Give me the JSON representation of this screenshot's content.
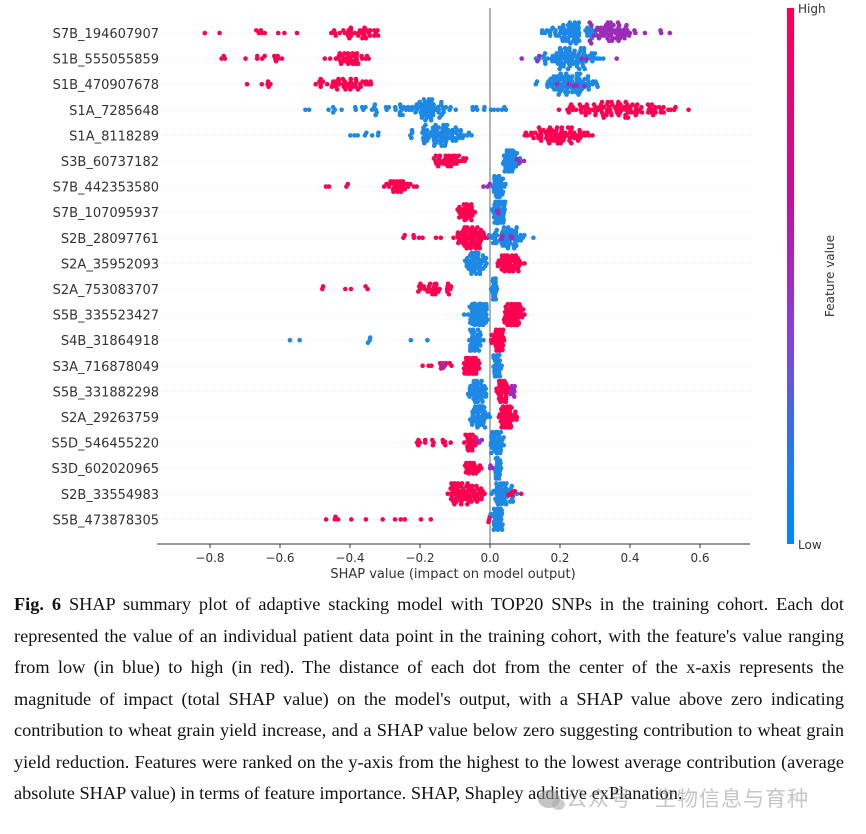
{
  "chart_data": {
    "type": "scatter",
    "subtype": "shap-beeswarm",
    "xlabel": "SHAP value (impact on model output)",
    "xlim": [
      -0.94,
      0.74
    ],
    "xticks": [
      -0.8,
      -0.6,
      -0.4,
      -0.2,
      0.0,
      0.2,
      0.4,
      0.6
    ],
    "xtick_labels": [
      "−0.8",
      "−0.6",
      "−0.4",
      "−0.2",
      "0.0",
      "0.2",
      "0.4",
      "0.6"
    ],
    "grid": false,
    "colorbar": {
      "label": "Feature value",
      "high_label": "High",
      "low_label": "Low",
      "high_color": "#ff0051",
      "mid_color": "#8a2be2",
      "low_color": "#008bfb"
    },
    "colors": {
      "high": "#ff0051",
      "mid": "#9b2db8",
      "low": "#1e88e5"
    },
    "features": [
      {
        "name": "S7B_194607907",
        "clusters": [
          {
            "color": "high",
            "from": -0.87,
            "to": -0.55,
            "n": 10,
            "peak": -0.7,
            "spread": 1
          },
          {
            "color": "high",
            "from": -0.52,
            "to": -0.25,
            "n": 40,
            "peak": -0.38,
            "spread": 2
          },
          {
            "color": "low",
            "from": 0.07,
            "to": 0.32,
            "n": 70,
            "peak": 0.27,
            "spread": 4
          },
          {
            "color": "mid",
            "from": 0.22,
            "to": 0.46,
            "n": 60,
            "peak": 0.38,
            "spread": 4
          },
          {
            "color": "mid",
            "from": 0.48,
            "to": 0.52,
            "n": 3,
            "peak": 0.5,
            "spread": 1
          }
        ]
      },
      {
        "name": "S1B_555055859",
        "clusters": [
          {
            "color": "high",
            "from": -0.79,
            "to": -0.57,
            "n": 14,
            "peak": -0.65,
            "spread": 1
          },
          {
            "color": "high",
            "from": -0.5,
            "to": -0.3,
            "n": 40,
            "peak": -0.42,
            "spread": 2
          },
          {
            "color": "low",
            "from": 0.08,
            "to": 0.35,
            "n": 90,
            "peak": 0.26,
            "spread": 5
          },
          {
            "color": "mid",
            "from": 0.08,
            "to": 0.37,
            "n": 6,
            "peak": 0.3,
            "spread": 1
          }
        ]
      },
      {
        "name": "S1B_470907678",
        "clusters": [
          {
            "color": "high",
            "from": -0.7,
            "to": -0.6,
            "n": 6,
            "peak": -0.65,
            "spread": 1
          },
          {
            "color": "high",
            "from": -0.57,
            "to": -0.25,
            "n": 45,
            "peak": -0.42,
            "spread": 2
          },
          {
            "color": "low",
            "from": 0.08,
            "to": 0.37,
            "n": 90,
            "peak": 0.24,
            "spread": 5
          },
          {
            "color": "mid",
            "from": 0.12,
            "to": 0.3,
            "n": 5,
            "peak": 0.2,
            "spread": 1
          }
        ]
      },
      {
        "name": "S1A_7285648",
        "clusters": [
          {
            "color": "low",
            "from": -0.76,
            "to": -0.1,
            "n": 30,
            "peak": -0.22,
            "spread": 2
          },
          {
            "color": "low",
            "from": -0.28,
            "to": 0.0,
            "n": 60,
            "peak": -0.23,
            "spread": 4
          },
          {
            "color": "low",
            "from": -0.05,
            "to": 0.05,
            "n": 12,
            "peak": 0.0,
            "spread": 1
          },
          {
            "color": "high",
            "from": 0.02,
            "to": 0.66,
            "n": 100,
            "peak": 0.4,
            "spread": 3
          }
        ]
      },
      {
        "name": "S1A_8118289",
        "clusters": [
          {
            "color": "low",
            "from": -0.47,
            "to": -0.3,
            "n": 8,
            "peak": -0.33,
            "spread": 1
          },
          {
            "color": "low",
            "from": -0.3,
            "to": 0.0,
            "n": 80,
            "peak": -0.13,
            "spread": 4
          },
          {
            "color": "high",
            "from": 0.0,
            "to": 0.35,
            "n": 80,
            "peak": 0.2,
            "spread": 3
          }
        ]
      },
      {
        "name": "S3B_60737182",
        "clusters": [
          {
            "color": "high",
            "from": -0.23,
            "to": -0.05,
            "n": 45,
            "peak": -0.1,
            "spread": 2
          },
          {
            "color": "low",
            "from": 0.01,
            "to": 0.1,
            "n": 60,
            "peak": 0.06,
            "spread": 5
          },
          {
            "color": "mid",
            "from": 0.05,
            "to": 0.11,
            "n": 4,
            "peak": 0.08,
            "spread": 1
          }
        ]
      },
      {
        "name": "S7B_442353580",
        "clusters": [
          {
            "color": "high",
            "from": -0.47,
            "to": -0.37,
            "n": 4,
            "peak": -0.42,
            "spread": 1
          },
          {
            "color": "high",
            "from": -0.35,
            "to": -0.18,
            "n": 35,
            "peak": -0.24,
            "spread": 2
          },
          {
            "color": "mid",
            "from": -0.02,
            "to": 0.0,
            "n": 3,
            "peak": -0.01,
            "spread": 1
          },
          {
            "color": "low",
            "from": 0.0,
            "to": 0.07,
            "n": 50,
            "peak": 0.01,
            "spread": 4
          }
        ]
      },
      {
        "name": "S7B_107095937",
        "clusters": [
          {
            "color": "high",
            "from": -0.11,
            "to": -0.02,
            "n": 40,
            "peak": -0.07,
            "spread": 3
          },
          {
            "color": "low",
            "from": 0.0,
            "to": 0.06,
            "n": 55,
            "peak": 0.02,
            "spread": 5
          },
          {
            "color": "mid",
            "from": 0.02,
            "to": 0.04,
            "n": 3,
            "peak": 0.03,
            "spread": 1
          }
        ]
      },
      {
        "name": "S2B_28097761",
        "clusters": [
          {
            "color": "high",
            "from": -0.25,
            "to": -0.14,
            "n": 8,
            "peak": -0.18,
            "spread": 1
          },
          {
            "color": "high",
            "from": -0.15,
            "to": 0.0,
            "n": 70,
            "peak": -0.03,
            "spread": 5
          },
          {
            "color": "low",
            "from": -0.01,
            "to": 0.19,
            "n": 60,
            "peak": 0.01,
            "spread": 4
          },
          {
            "color": "mid",
            "from": 0.03,
            "to": 0.08,
            "n": 6,
            "peak": 0.05,
            "spread": 1
          }
        ]
      },
      {
        "name": "S2A_35952093",
        "clusters": [
          {
            "color": "low",
            "from": -0.1,
            "to": 0.0,
            "n": 50,
            "peak": -0.03,
            "spread": 5
          },
          {
            "color": "high",
            "from": 0.0,
            "to": 0.12,
            "n": 55,
            "peak": 0.05,
            "spread": 3
          }
        ]
      },
      {
        "name": "S2A_753083707",
        "clusters": [
          {
            "color": "high",
            "from": -0.48,
            "to": -0.3,
            "n": 6,
            "peak": -0.4,
            "spread": 1
          },
          {
            "color": "high",
            "from": -0.27,
            "to": -0.08,
            "n": 30,
            "peak": -0.12,
            "spread": 2
          },
          {
            "color": "low",
            "from": 0.0,
            "to": 0.03,
            "n": 35,
            "peak": 0.01,
            "spread": 5
          }
        ]
      },
      {
        "name": "S5B_335523427",
        "clusters": [
          {
            "color": "low",
            "from": -0.09,
            "to": 0.03,
            "n": 70,
            "peak": -0.04,
            "spread": 5
          },
          {
            "color": "high",
            "from": 0.02,
            "to": 0.12,
            "n": 70,
            "peak": 0.06,
            "spread": 4
          }
        ]
      },
      {
        "name": "S4B_31864918",
        "clusters": [
          {
            "color": "low",
            "from": -0.6,
            "to": -0.1,
            "n": 7,
            "peak": -0.3,
            "spread": 1
          },
          {
            "color": "low",
            "from": -0.08,
            "to": 0.0,
            "n": 40,
            "peak": -0.04,
            "spread": 4
          },
          {
            "color": "high",
            "from": 0.0,
            "to": 0.07,
            "n": 45,
            "peak": 0.01,
            "spread": 4
          }
        ]
      },
      {
        "name": "S3A_716878049",
        "clusters": [
          {
            "color": "high",
            "from": -0.2,
            "to": -0.1,
            "n": 10,
            "peak": -0.15,
            "spread": 1
          },
          {
            "color": "mid",
            "from": -0.14,
            "to": -0.11,
            "n": 3,
            "peak": -0.12,
            "spread": 1
          },
          {
            "color": "high",
            "from": -0.1,
            "to": -0.01,
            "n": 40,
            "peak": -0.05,
            "spread": 3
          },
          {
            "color": "low",
            "from": 0.0,
            "to": 0.05,
            "n": 40,
            "peak": 0.01,
            "spread": 5
          }
        ]
      },
      {
        "name": "S5B_331882298",
        "clusters": [
          {
            "color": "low",
            "from": -0.09,
            "to": 0.01,
            "n": 50,
            "peak": -0.02,
            "spread": 5
          },
          {
            "color": "high",
            "from": 0.01,
            "to": 0.07,
            "n": 45,
            "peak": 0.03,
            "spread": 4
          },
          {
            "color": "mid",
            "from": 0.04,
            "to": 0.09,
            "n": 10,
            "peak": 0.06,
            "spread": 2
          }
        ]
      },
      {
        "name": "S2A_29263759",
        "clusters": [
          {
            "color": "low",
            "from": -0.08,
            "to": 0.01,
            "n": 55,
            "peak": -0.02,
            "spread": 5
          },
          {
            "color": "high",
            "from": 0.01,
            "to": 0.1,
            "n": 70,
            "peak": 0.04,
            "spread": 4
          }
        ]
      },
      {
        "name": "S5D_546455220",
        "clusters": [
          {
            "color": "high",
            "from": -0.22,
            "to": -0.11,
            "n": 14,
            "peak": -0.18,
            "spread": 1
          },
          {
            "color": "high",
            "from": -0.09,
            "to": -0.02,
            "n": 30,
            "peak": -0.05,
            "spread": 3
          },
          {
            "color": "mid",
            "from": -0.04,
            "to": -0.02,
            "n": 3,
            "peak": -0.03,
            "spread": 1
          },
          {
            "color": "low",
            "from": -0.01,
            "to": 0.06,
            "n": 50,
            "peak": 0.01,
            "spread": 5
          }
        ]
      },
      {
        "name": "S3D_602020965",
        "clusters": [
          {
            "color": "high",
            "from": -0.09,
            "to": -0.01,
            "n": 35,
            "peak": -0.04,
            "spread": 2
          },
          {
            "color": "mid",
            "from": 0.0,
            "to": 0.01,
            "n": 3,
            "peak": 0.0,
            "spread": 1
          },
          {
            "color": "low",
            "from": 0.01,
            "to": 0.04,
            "n": 30,
            "peak": 0.02,
            "spread": 5
          }
        ]
      },
      {
        "name": "S2B_33554983",
        "clusters": [
          {
            "color": "high",
            "from": -0.21,
            "to": 0.0,
            "n": 70,
            "peak": -0.01,
            "spread": 5
          },
          {
            "color": "low",
            "from": 0.0,
            "to": 0.12,
            "n": 55,
            "peak": 0.01,
            "spread": 4
          },
          {
            "color": "high",
            "from": 0.05,
            "to": 0.09,
            "n": 6,
            "peak": 0.07,
            "spread": 1
          }
        ]
      },
      {
        "name": "S5B_473878305",
        "clusters": [
          {
            "color": "high",
            "from": -0.5,
            "to": -0.1,
            "n": 12,
            "peak": -0.3,
            "spread": 1
          },
          {
            "color": "high",
            "from": -0.01,
            "to": 0.0,
            "n": 3,
            "peak": -0.01,
            "spread": 1
          },
          {
            "color": "low",
            "from": 0.0,
            "to": 0.06,
            "n": 45,
            "peak": 0.01,
            "spread": 5
          }
        ]
      }
    ]
  },
  "caption": {
    "fig_label": "Fig. 6",
    "text": " SHAP summary plot of adaptive stacking model with TOP20 SNPs in the training cohort. Each dot represented the value of an individual patient data point in the training cohort, with the feature's value ranging from low (in blue) to high (in red). The distance of each dot from the center of the x-axis represents the magnitude of impact (total SHAP value) on the model's output, with a SHAP value above zero indicating contribution to wheat grain yield increase, and a SHAP value below zero suggesting contribution to wheat grain yield reduction. Features were ranked on the y-axis from the highest to the lowest average contribution (average absolute SHAP value) in terms of feature importance. SHAP, Shapley additive exPlanation."
  },
  "watermark": {
    "icon": "wechat-icon",
    "text": "公众号 · 生物信息与育种"
  }
}
